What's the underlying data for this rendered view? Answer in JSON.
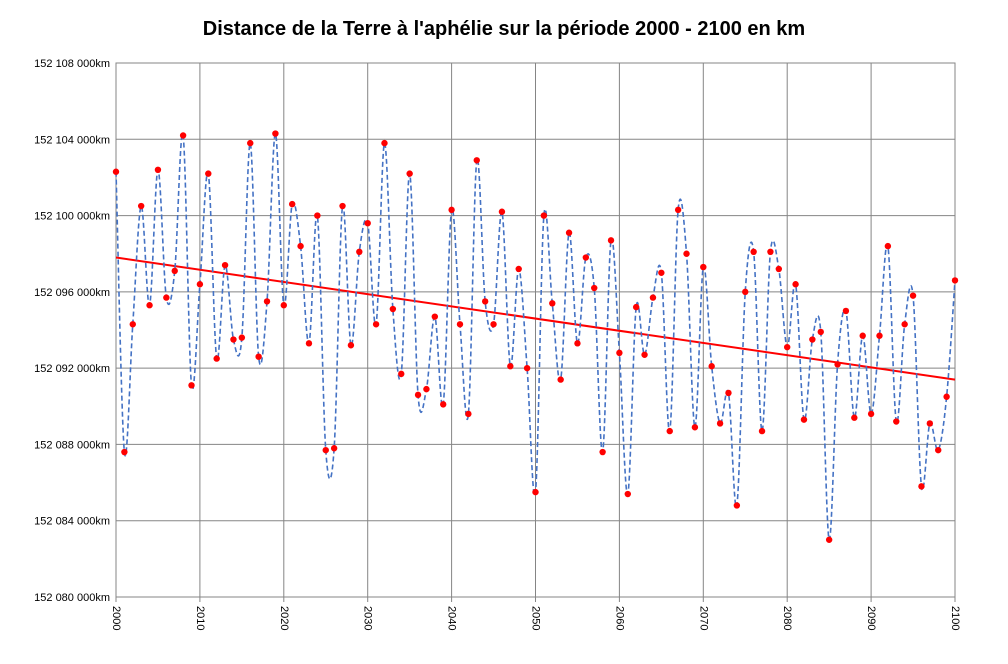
{
  "chart_data": {
    "type": "line",
    "title": "Distance de la Terre à l'aphélie sur la période 2000 - 2100 en km",
    "xlabel": "",
    "ylabel": "",
    "xlim": [
      2000,
      2100
    ],
    "ylim": [
      152080000,
      152108000
    ],
    "x_ticks": [
      "2000",
      "2010",
      "2020",
      "2030",
      "2040",
      "2050",
      "2060",
      "2070",
      "2080",
      "2090",
      "2100"
    ],
    "y_ticks": [
      "152 080 000km",
      "152 084 000km",
      "152 088 000km",
      "152 092 000km",
      "152 096 000km",
      "152 100 000km",
      "152 104 000km",
      "152 108 000km"
    ],
    "grid": true,
    "legend": "none",
    "series": [
      {
        "style": "markers with dashed smoothed line",
        "marker_color": "#ff0000",
        "line_color": "#4472c4",
        "x": [
          2000,
          2001,
          2002,
          2003,
          2004,
          2005,
          2006,
          2007,
          2008,
          2009,
          2010,
          2011,
          2012,
          2013,
          2014,
          2015,
          2016,
          2017,
          2018,
          2019,
          2020,
          2021,
          2022,
          2023,
          2024,
          2025,
          2026,
          2027,
          2028,
          2029,
          2030,
          2031,
          2032,
          2033,
          2034,
          2035,
          2036,
          2037,
          2038,
          2039,
          2040,
          2041,
          2042,
          2043,
          2044,
          2045,
          2046,
          2047,
          2048,
          2049,
          2050,
          2051,
          2052,
          2053,
          2054,
          2055,
          2056,
          2057,
          2058,
          2059,
          2060,
          2061,
          2062,
          2063,
          2064,
          2065,
          2066,
          2067,
          2068,
          2069,
          2070,
          2071,
          2072,
          2073,
          2074,
          2075,
          2076,
          2077,
          2078,
          2079,
          2080,
          2081,
          2082,
          2083,
          2084,
          2085,
          2086,
          2087,
          2088,
          2089,
          2090,
          2091,
          2092,
          2093,
          2094,
          2095,
          2096,
          2097,
          2098,
          2099,
          2100
        ],
        "y": [
          152102300,
          152087600,
          152094300,
          152100500,
          152095300,
          152102400,
          152095700,
          152097100,
          152104200,
          152091100,
          152096400,
          152102200,
          152092500,
          152097400,
          152093500,
          152093600,
          152103800,
          152092600,
          152095500,
          152104300,
          152095300,
          152100600,
          152098400,
          152093300,
          152100000,
          152087700,
          152087800,
          152100500,
          152093200,
          152098100,
          152099600,
          152094300,
          152103800,
          152095100,
          152091700,
          152102200,
          152090600,
          152090900,
          152094700,
          152090100,
          152100300,
          152094300,
          152089600,
          152102900,
          152095500,
          152094300,
          152100200,
          152092100,
          152097200,
          152092000,
          152085500,
          152100000,
          152095400,
          152091400,
          152099100,
          152093300,
          152097800,
          152096200,
          152087600,
          152098700,
          152092800,
          152085400,
          152095200,
          152092700,
          152095700,
          152097000,
          152088700,
          152100300,
          152098000,
          152088900,
          152097300,
          152092100,
          152089100,
          152090700,
          152084800,
          152096000,
          152098100,
          152088700,
          152098100,
          152097200,
          152093100,
          152096400,
          152089300,
          152093500,
          152093900,
          152083000,
          152092200,
          152095000,
          152089400,
          152093700,
          152089600,
          152093700,
          152098400,
          152089200,
          152094300,
          152095800,
          152085800,
          152089100,
          152087700,
          152090500,
          152096600
        ]
      },
      {
        "style": "linear trendline",
        "line_color": "#ff0000",
        "x": [
          2000,
          2100
        ],
        "y": [
          152097800,
          152091400
        ]
      }
    ]
  }
}
